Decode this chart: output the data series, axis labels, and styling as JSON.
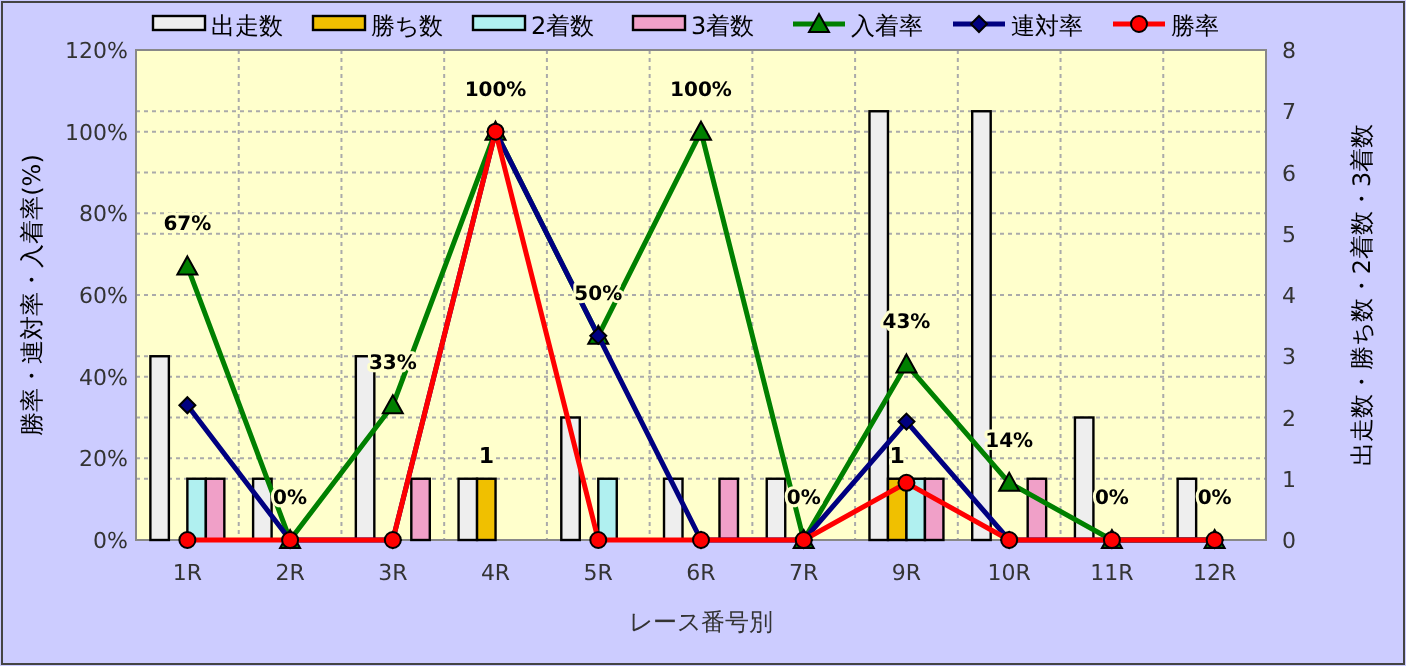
{
  "chart_data": {
    "type": "bar",
    "xlabel": "レース番号別",
    "ylabel": "勝率・連対率・入着率(%)",
    "y2label": "出走数・勝ち数・2着数・3着数",
    "categories": [
      "1R",
      "2R",
      "3R",
      "4R",
      "5R",
      "6R",
      "7R",
      "9R",
      "10R",
      "11R",
      "12R"
    ],
    "series": [
      {
        "name": "出走数",
        "axis": "y2",
        "color": "#eeeeee",
        "values": [
          3,
          1,
          3,
          1,
          2,
          1,
          1,
          7,
          7,
          2,
          1
        ]
      },
      {
        "name": "勝ち数",
        "axis": "y2",
        "color": "#f0c000",
        "values": [
          0,
          0,
          0,
          1,
          0,
          0,
          0,
          1,
          0,
          0,
          0
        ],
        "value_labels": [
          null,
          null,
          null,
          "1",
          null,
          null,
          null,
          "1",
          null,
          null,
          null
        ]
      },
      {
        "name": "2着数",
        "axis": "y2",
        "color": "#b0f0f0",
        "values": [
          1,
          0,
          0,
          0,
          1,
          0,
          0,
          1,
          0,
          0,
          0
        ]
      },
      {
        "name": "3着数",
        "axis": "y2",
        "color": "#f0a0c8",
        "values": [
          1,
          0,
          1,
          0,
          0,
          1,
          0,
          1,
          1,
          0,
          0
        ]
      },
      {
        "name": "入着率",
        "type": "line",
        "color": "#008000",
        "marker": "triangle",
        "values": [
          67,
          0,
          33,
          100,
          50,
          100,
          0,
          43,
          14,
          0,
          0
        ],
        "value_labels": [
          "67%",
          "0%",
          "33%",
          "100%",
          "50%",
          "100%",
          "0%",
          "43%",
          "14%",
          "0%",
          "0%"
        ]
      },
      {
        "name": "連対率",
        "type": "line",
        "color": "#000080",
        "marker": "diamond",
        "values": [
          33,
          0,
          0,
          100,
          50,
          0,
          0,
          29,
          0,
          0,
          0
        ]
      },
      {
        "name": "勝率",
        "type": "line",
        "color": "#ff0000",
        "marker": "circle",
        "values": [
          0,
          0,
          0,
          100,
          0,
          0,
          0,
          14,
          0,
          0,
          0
        ]
      }
    ],
    "ylim": [
      0,
      120
    ],
    "yticks": [
      {
        "value": 0,
        "label": "0%"
      },
      {
        "value": 20,
        "label": "20%"
      },
      {
        "value": 40,
        "label": "40%"
      },
      {
        "value": 60,
        "label": "60%"
      },
      {
        "value": 80,
        "label": "80%"
      },
      {
        "value": 100,
        "label": "100%"
      },
      {
        "value": 120,
        "label": "120%"
      }
    ],
    "y2lim": [
      0,
      8
    ],
    "y2ticks": [
      0,
      1,
      2,
      3,
      4,
      5,
      6,
      7,
      8
    ],
    "grid": true,
    "legend": "top"
  }
}
